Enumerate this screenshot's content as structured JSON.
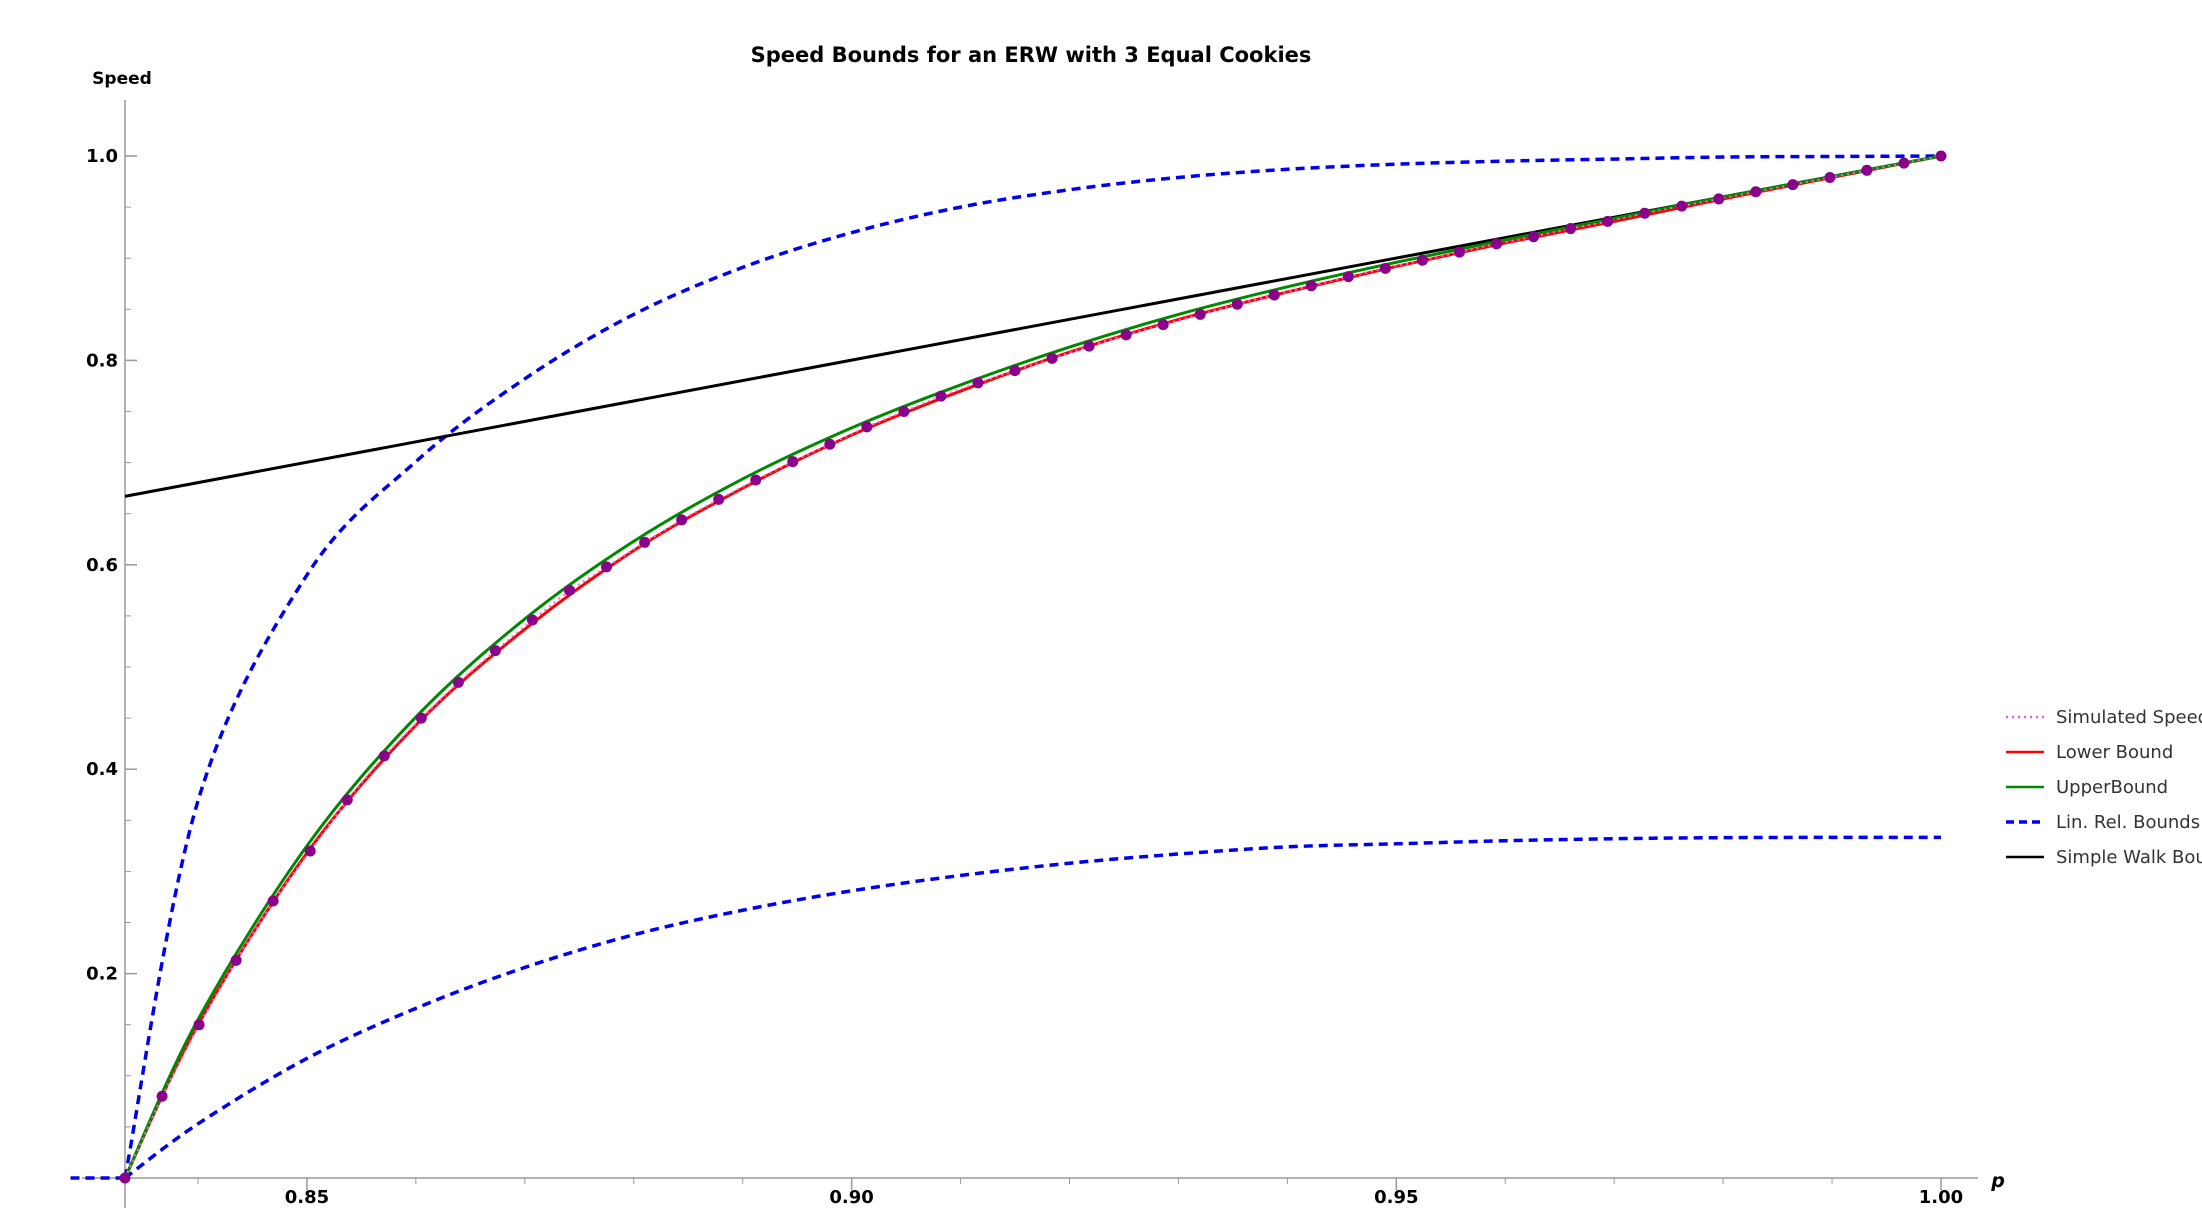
{
  "chart_data": {
    "type": "line",
    "title": "Speed Bounds for an ERW with 3 Equal Cookies",
    "xlabel": "p",
    "ylabel": "Speed",
    "xlim": [
      0.8333,
      1.0
    ],
    "ylim": [
      0.0,
      1.0
    ],
    "x_ticks": [
      {
        "value": 0.85,
        "label": "0.85"
      },
      {
        "value": 0.9,
        "label": "0.90"
      },
      {
        "value": 0.95,
        "label": "0.95"
      },
      {
        "value": 1.0,
        "label": "1.00"
      }
    ],
    "y_ticks": [
      {
        "value": 0.2,
        "label": "0.2"
      },
      {
        "value": 0.4,
        "label": "0.4"
      },
      {
        "value": 0.6,
        "label": "0.6"
      },
      {
        "value": 0.8,
        "label": "0.8"
      },
      {
        "value": 1.0,
        "label": "1.0"
      }
    ],
    "grid": false,
    "legend_position": "right",
    "legend": [
      {
        "label": "Simulated Speed",
        "color": "#ee55ee",
        "style": "dotted"
      },
      {
        "label": "Lower Bound",
        "color": "#ff0000",
        "style": "solid"
      },
      {
        "label": "UpperBound",
        "color": "#008800",
        "style": "solid"
      },
      {
        "label": "Lin. Rel. Bounds",
        "color": "#0000ee",
        "style": "dashed"
      },
      {
        "label": "Simple Walk Bounds",
        "color": "#000000",
        "style": "solid"
      }
    ],
    "series": [
      {
        "name": "Simulated Speed",
        "color": "#8b008b",
        "style": "points",
        "x": [
          0.8333,
          0.8367,
          0.8401,
          0.8435,
          0.8469,
          0.8503,
          0.8537,
          0.8571,
          0.8605,
          0.8639,
          0.8673,
          0.8707,
          0.8741,
          0.8775,
          0.881,
          0.8844,
          0.8878,
          0.8912,
          0.8946,
          0.898,
          0.9014,
          0.9048,
          0.9082,
          0.9116,
          0.915,
          0.9184,
          0.9218,
          0.9252,
          0.9286,
          0.932,
          0.9354,
          0.9388,
          0.9422,
          0.9456,
          0.949,
          0.9524,
          0.9558,
          0.9592,
          0.9626,
          0.966,
          0.9694,
          0.9728,
          0.9762,
          0.9796,
          0.983,
          0.9864,
          0.9898,
          0.9932,
          0.9966,
          1.0
        ],
        "y": [
          0.0,
          0.08,
          0.15,
          0.213,
          0.271,
          0.32,
          0.37,
          0.413,
          0.45,
          0.485,
          0.516,
          0.546,
          0.575,
          0.598,
          0.622,
          0.644,
          0.664,
          0.683,
          0.701,
          0.718,
          0.735,
          0.75,
          0.765,
          0.778,
          0.79,
          0.802,
          0.814,
          0.825,
          0.835,
          0.845,
          0.855,
          0.864,
          0.873,
          0.882,
          0.89,
          0.898,
          0.906,
          0.914,
          0.921,
          0.929,
          0.936,
          0.944,
          0.951,
          0.958,
          0.965,
          0.972,
          0.979,
          0.986,
          0.993,
          1.0
        ]
      },
      {
        "name": "Lower Bound",
        "color": "#ff0000",
        "style": "solid",
        "x": [
          0.8333,
          0.84,
          0.85,
          0.86,
          0.87,
          0.88,
          0.89,
          0.9,
          0.91,
          0.92,
          0.93,
          0.94,
          0.95,
          0.96,
          0.97,
          0.98,
          0.99,
          1.0
        ],
        "y": [
          0.0,
          0.15,
          0.318,
          0.443,
          0.537,
          0.614,
          0.675,
          0.727,
          0.77,
          0.808,
          0.84,
          0.867,
          0.892,
          0.915,
          0.936,
          0.958,
          0.979,
          1.0
        ]
      },
      {
        "name": "UpperBound",
        "color": "#008800",
        "style": "solid",
        "x": [
          0.8333,
          0.84,
          0.85,
          0.86,
          0.87,
          0.88,
          0.89,
          0.9,
          0.91,
          0.92,
          0.93,
          0.94,
          0.95,
          0.96,
          0.97,
          0.98,
          0.99,
          1.0
        ],
        "y": [
          0.0,
          0.155,
          0.325,
          0.451,
          0.547,
          0.623,
          0.684,
          0.734,
          0.776,
          0.813,
          0.845,
          0.872,
          0.896,
          0.918,
          0.939,
          0.96,
          0.98,
          1.0
        ]
      },
      {
        "name": "Lin. Rel. Bounds",
        "color": "#0000ee",
        "style": "dashed",
        "x": [
          0.8283,
          0.8333
        ],
        "y": [
          0.0,
          0.0
        ]
      },
      {
        "name": "Lin. Rel. Bounds",
        "color": "#0000ee",
        "style": "dashed",
        "x": [
          0.8333,
          0.84,
          0.85,
          0.86,
          0.87,
          0.88,
          0.89,
          0.9,
          0.91,
          0.92,
          0.93,
          0.94,
          0.95,
          0.96,
          0.97,
          0.98,
          0.99,
          1.0
        ],
        "y": [
          0.0,
          0.369,
          0.59,
          0.701,
          0.782,
          0.845,
          0.891,
          0.925,
          0.95,
          0.967,
          0.979,
          0.987,
          0.992,
          0.995,
          0.997,
          0.999,
          0.9995,
          1.0
        ]
      },
      {
        "name": "Lin. Rel. Bounds",
        "color": "#0000ee",
        "style": "dashed",
        "x": [
          0.8333,
          0.84,
          0.85,
          0.86,
          0.87,
          0.88,
          0.89,
          0.9,
          0.91,
          0.92,
          0.93,
          0.94,
          0.95,
          0.96,
          0.97,
          0.98,
          0.99,
          1.0
        ],
        "y": [
          0.0,
          0.053,
          0.117,
          0.166,
          0.206,
          0.238,
          0.262,
          0.281,
          0.296,
          0.308,
          0.317,
          0.324,
          0.327,
          0.33,
          0.332,
          0.333,
          0.3333,
          0.3333
        ]
      },
      {
        "name": "Simple Walk Bounds",
        "color": "#000000",
        "style": "solid",
        "x": [
          0.8333,
          1.0
        ],
        "y": [
          0.667,
          1.0
        ]
      }
    ]
  }
}
